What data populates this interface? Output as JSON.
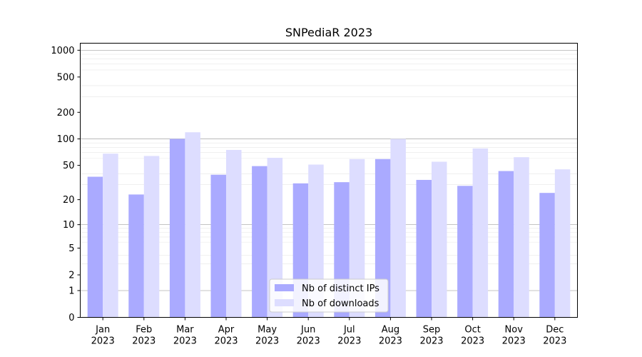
{
  "chart_data": {
    "type": "bar",
    "title": "SNPediaR 2023",
    "xlabel": "",
    "ylabel": "",
    "yscale": "log(1+y)",
    "ylim": [
      0,
      1200
    ],
    "yticks": [
      0,
      1,
      2,
      5,
      10,
      20,
      50,
      100,
      200,
      500,
      1000
    ],
    "categories": [
      [
        "Jan",
        "2023"
      ],
      [
        "Feb",
        "2023"
      ],
      [
        "Mar",
        "2023"
      ],
      [
        "Apr",
        "2023"
      ],
      [
        "May",
        "2023"
      ],
      [
        "Jun",
        "2023"
      ],
      [
        "Jul",
        "2023"
      ],
      [
        "Aug",
        "2023"
      ],
      [
        "Sep",
        "2023"
      ],
      [
        "Oct",
        "2023"
      ],
      [
        "Nov",
        "2023"
      ],
      [
        "Dec",
        "2023"
      ]
    ],
    "series": [
      {
        "name": "Nb of distinct IPs",
        "color": "#aaaaff",
        "values": [
          37,
          23,
          100,
          39,
          49,
          31,
          32,
          59,
          34,
          29,
          43,
          24
        ]
      },
      {
        "name": "Nb of downloads",
        "color": "#ddddff",
        "values": [
          68,
          64,
          119,
          75,
          61,
          51,
          59,
          100,
          55,
          78,
          62,
          45
        ]
      }
    ],
    "grid": {
      "major": true,
      "minor": true
    },
    "legend_position": "bottom-center"
  }
}
